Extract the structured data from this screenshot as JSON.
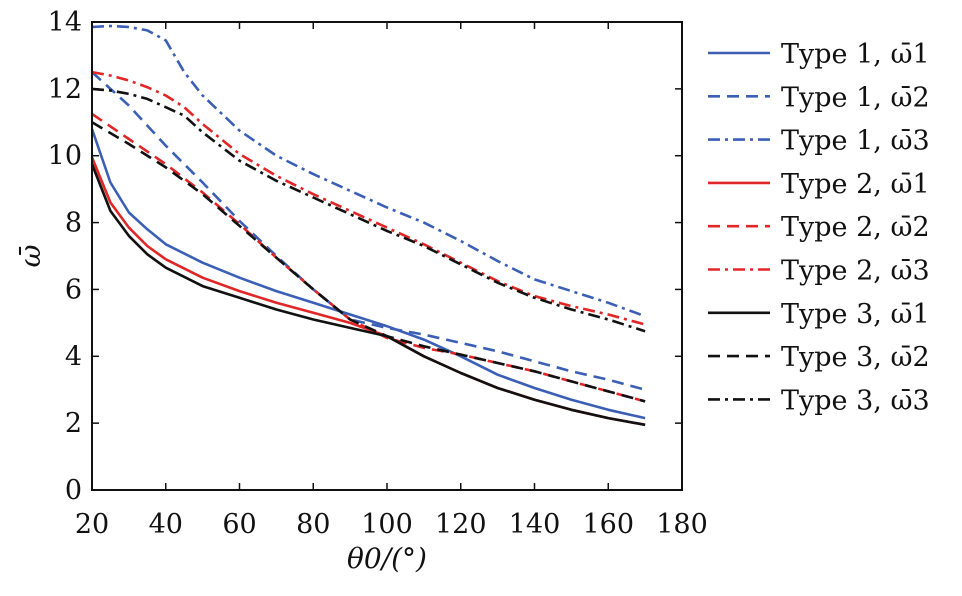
{
  "chart_data": {
    "type": "line",
    "xlabel": "θ0/(°)",
    "ylabel": "ω̄",
    "xlim": [
      20,
      180
    ],
    "ylim": [
      0,
      14
    ],
    "xticks": [
      20,
      40,
      60,
      80,
      100,
      120,
      140,
      160,
      180
    ],
    "yticks": [
      0,
      2,
      4,
      6,
      8,
      10,
      12,
      14
    ],
    "legend_position": "right",
    "grid": false,
    "series": [
      {
        "name": "Type 1, ω̄1",
        "color": "#3a5fb5",
        "dash": "solid",
        "x": [
          20,
          25,
          30,
          35,
          40,
          50,
          60,
          70,
          80,
          90,
          100,
          110,
          120,
          130,
          140,
          150,
          160,
          170
        ],
        "y": [
          10.8,
          9.2,
          8.3,
          7.8,
          7.35,
          6.8,
          6.35,
          5.95,
          5.6,
          5.25,
          4.9,
          4.5,
          4.0,
          3.45,
          3.05,
          2.7,
          2.4,
          2.15
        ]
      },
      {
        "name": "Type 1, ω̄2",
        "color": "#3a5fb5",
        "dash": "dashed",
        "x": [
          20,
          30,
          40,
          50,
          60,
          70,
          80,
          90,
          100,
          110,
          120,
          130,
          140,
          150,
          160,
          170
        ],
        "y": [
          12.5,
          11.5,
          10.3,
          9.2,
          8.05,
          7.0,
          6.0,
          5.1,
          4.85,
          4.65,
          4.4,
          4.15,
          3.85,
          3.55,
          3.3,
          3.0
        ]
      },
      {
        "name": "Type 1, ω̄3",
        "color": "#3a5fb5",
        "dash": "dashdot",
        "x": [
          20,
          25,
          30,
          35,
          40,
          45,
          50,
          60,
          70,
          80,
          90,
          100,
          110,
          120,
          130,
          140,
          150,
          160,
          170
        ],
        "y": [
          13.85,
          13.88,
          13.85,
          13.75,
          13.45,
          12.5,
          11.8,
          10.75,
          10.0,
          9.45,
          8.95,
          8.45,
          8.0,
          7.45,
          6.85,
          6.3,
          5.95,
          5.6,
          5.2
        ]
      },
      {
        "name": "Type 2, ω̄1",
        "color": "#e02626",
        "dash": "solid",
        "x": [
          20,
          25,
          30,
          35,
          40,
          50,
          60,
          70,
          80,
          90,
          100,
          110,
          120,
          130,
          140,
          150,
          160,
          170
        ],
        "y": [
          9.95,
          8.6,
          7.85,
          7.3,
          6.9,
          6.35,
          5.95,
          5.6,
          5.3,
          5.0,
          4.6,
          4.0,
          3.5,
          3.05,
          2.7,
          2.4,
          2.15,
          1.95
        ]
      },
      {
        "name": "Type 2, ω̄2",
        "color": "#e02626",
        "dash": "dashed",
        "x": [
          20,
          30,
          40,
          50,
          60,
          70,
          80,
          90,
          100,
          110,
          120,
          130,
          140,
          150,
          160,
          170
        ],
        "y": [
          11.25,
          10.5,
          9.75,
          8.9,
          7.95,
          6.95,
          6.0,
          5.1,
          4.55,
          4.25,
          4.05,
          3.8,
          3.55,
          3.25,
          2.95,
          2.65
        ]
      },
      {
        "name": "Type 2, ω̄3",
        "color": "#e02626",
        "dash": "dashdot",
        "x": [
          20,
          25,
          30,
          35,
          40,
          45,
          50,
          60,
          70,
          80,
          90,
          100,
          110,
          120,
          130,
          140,
          150,
          160,
          170
        ],
        "y": [
          12.5,
          12.4,
          12.25,
          12.05,
          11.8,
          11.45,
          10.95,
          10.05,
          9.4,
          8.85,
          8.35,
          7.85,
          7.35,
          6.8,
          6.25,
          5.8,
          5.5,
          5.25,
          4.95
        ]
      },
      {
        "name": "Type 3, ω̄1",
        "color": "#111111",
        "dash": "solid",
        "x": [
          20,
          25,
          30,
          35,
          40,
          50,
          60,
          70,
          80,
          90,
          100,
          110,
          120,
          130,
          140,
          150,
          160,
          170
        ],
        "y": [
          9.75,
          8.35,
          7.6,
          7.05,
          6.65,
          6.1,
          5.75,
          5.4,
          5.1,
          4.85,
          4.6,
          4.0,
          3.5,
          3.05,
          2.7,
          2.4,
          2.15,
          1.95
        ]
      },
      {
        "name": "Type 3, ω̄2",
        "color": "#111111",
        "dash": "dashed",
        "x": [
          20,
          30,
          40,
          50,
          60,
          70,
          80,
          90,
          100,
          110,
          120,
          130,
          140,
          150,
          160,
          170
        ],
        "y": [
          11.0,
          10.35,
          9.65,
          8.85,
          7.9,
          6.95,
          6.0,
          5.1,
          4.6,
          4.3,
          4.05,
          3.8,
          3.55,
          3.25,
          2.95,
          2.65
        ]
      },
      {
        "name": "Type 3, ω̄3",
        "color": "#111111",
        "dash": "dashdot",
        "x": [
          20,
          25,
          30,
          35,
          40,
          45,
          50,
          60,
          70,
          80,
          90,
          100,
          110,
          120,
          130,
          140,
          150,
          160,
          170
        ],
        "y": [
          12.0,
          11.95,
          11.85,
          11.7,
          11.45,
          11.2,
          10.7,
          9.85,
          9.25,
          8.75,
          8.25,
          7.75,
          7.3,
          6.75,
          6.2,
          5.75,
          5.4,
          5.1,
          4.75
        ]
      }
    ]
  }
}
